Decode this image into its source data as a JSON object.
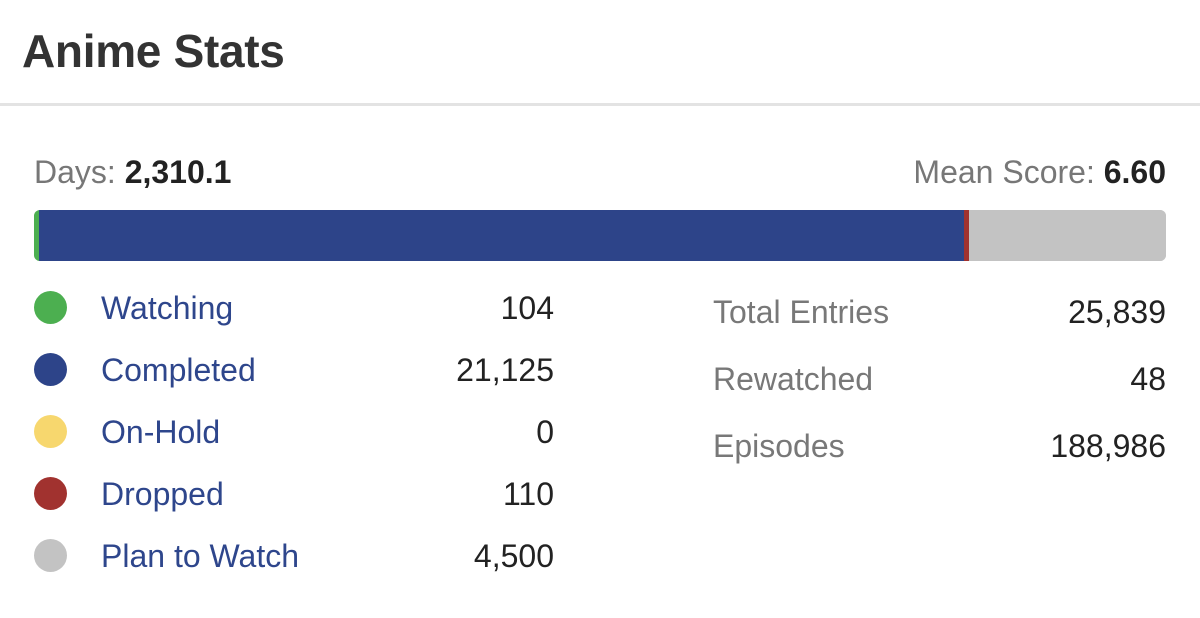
{
  "header": {
    "title": "Anime Stats"
  },
  "summary": {
    "days_label": "Days:",
    "days_value": "2,310.1",
    "mean_label": "Mean Score:",
    "mean_value": "6.60"
  },
  "statuses": [
    {
      "label": "Watching",
      "count": "104",
      "color": "#4caf50"
    },
    {
      "label": "Completed",
      "count": "21,125",
      "color": "#2d4489"
    },
    {
      "label": "On-Hold",
      "count": "0",
      "color": "#f7d76e"
    },
    {
      "label": "Dropped",
      "count": "110",
      "color": "#a1322f"
    },
    {
      "label": "Plan to Watch",
      "count": "4,500",
      "color": "#c3c3c3"
    }
  ],
  "progress_bar": {
    "segments": [
      {
        "name": "Watching",
        "value": 104,
        "color": "#4caf50"
      },
      {
        "name": "Completed",
        "value": 21125,
        "color": "#2d4489"
      },
      {
        "name": "On-Hold",
        "value": 0,
        "color": "#f7d76e"
      },
      {
        "name": "Dropped",
        "value": 110,
        "color": "#a1322f"
      },
      {
        "name": "Plan to Watch",
        "value": 4500,
        "color": "#c3c3c3"
      }
    ]
  },
  "totals": [
    {
      "label": "Total Entries",
      "value": "25,839"
    },
    {
      "label": "Rewatched",
      "value": "48"
    },
    {
      "label": "Episodes",
      "value": "188,986"
    }
  ]
}
